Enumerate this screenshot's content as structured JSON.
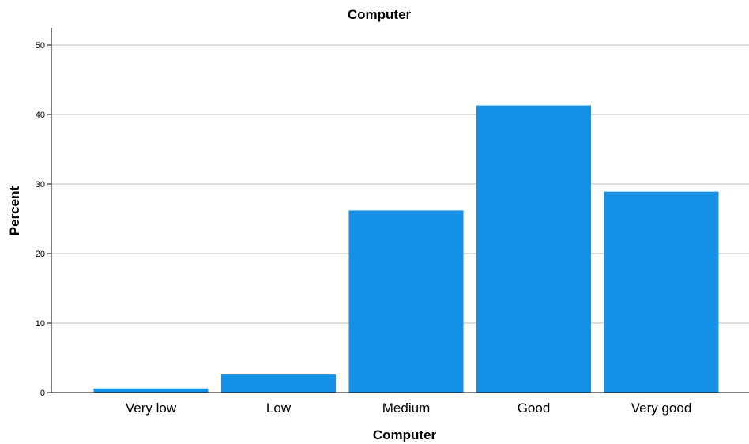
{
  "chart_data": {
    "type": "bar",
    "title": "Computer",
    "xlabel": "Computer",
    "ylabel": "Percent",
    "categories": [
      "Very low",
      "Low",
      "Medium",
      "Good",
      "Very good"
    ],
    "values": [
      0.6,
      2.6,
      26.2,
      41.3,
      28.9
    ],
    "ylim": [
      0,
      52.5
    ],
    "yticks": [
      0,
      10,
      20,
      30,
      40,
      50
    ],
    "grid": true,
    "bar_color": "#1490E6"
  }
}
